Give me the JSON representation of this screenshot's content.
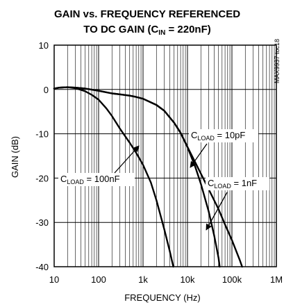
{
  "chart_data": {
    "type": "line",
    "title_line1": "GAIN vs. FREQUENCY REFERENCED",
    "title_line2": "TO DC GAIN (C",
    "title_sub": "IN",
    "title_suffix": " = 220nF)",
    "xlabel": "FREQUENCY (Hz)",
    "ylabel": "GAIN (dB)",
    "watermark": "MAX9937 toc18",
    "x_scale": "log",
    "xlim": [
      10,
      1000000
    ],
    "ylim": [
      -40,
      10
    ],
    "x_ticks": [
      {
        "value": 10,
        "label": "10"
      },
      {
        "value": 100,
        "label": "100"
      },
      {
        "value": 1000,
        "label": "1k"
      },
      {
        "value": 10000,
        "label": "10k"
      },
      {
        "value": 100000,
        "label": "100k"
      },
      {
        "value": 1000000,
        "label": "1M"
      }
    ],
    "y_ticks": [
      {
        "value": 10,
        "label": "10"
      },
      {
        "value": 0,
        "label": "0"
      },
      {
        "value": -10,
        "label": "-10"
      },
      {
        "value": -20,
        "label": "-20"
      },
      {
        "value": -30,
        "label": "-30"
      },
      {
        "value": -40,
        "label": "-40"
      }
    ],
    "grid": true,
    "series": [
      {
        "name": "CLOAD = 100nF",
        "x": [
          10,
          13,
          20,
          30,
          50,
          70,
          100,
          150,
          200,
          300,
          500,
          700,
          1000,
          1500,
          2000,
          3000,
          4000,
          4800
        ],
        "y": [
          0.2,
          0.4,
          0.5,
          0.3,
          -0.4,
          -1.2,
          -2.3,
          -4.3,
          -6.0,
          -8.8,
          -12.0,
          -14.3,
          -17.0,
          -21.0,
          -25.0,
          -31.5,
          -36.5,
          -40
        ]
      },
      {
        "name": "CLOAD = 1nF",
        "x": [
          10,
          13,
          20,
          30,
          50,
          100,
          200,
          300,
          500,
          700,
          1000,
          2000,
          3000,
          5000,
          7000,
          10000,
          15000,
          20000,
          30000,
          40000,
          50000,
          53000
        ],
        "y": [
          0.2,
          0.4,
          0.5,
          0.4,
          0.2,
          -0.3,
          -0.9,
          -1.1,
          -1.4,
          -1.7,
          -2.1,
          -3.5,
          -4.8,
          -7.5,
          -9.8,
          -13.0,
          -17.5,
          -21.3,
          -27.5,
          -33.0,
          -38.0,
          -40
        ]
      },
      {
        "name": "CLOAD = 10pF",
        "x": [
          10,
          13,
          20,
          30,
          50,
          100,
          200,
          300,
          500,
          700,
          1000,
          2000,
          3000,
          5000,
          7000,
          10000,
          15000,
          20000,
          30000,
          50000,
          70000,
          100000,
          150000,
          170000
        ],
        "y": [
          0.2,
          0.4,
          0.5,
          0.4,
          0.2,
          -0.3,
          -0.9,
          -1.1,
          -1.4,
          -1.7,
          -2.1,
          -3.5,
          -4.8,
          -7.5,
          -9.8,
          -13.0,
          -16.5,
          -19.0,
          -22.5,
          -27.0,
          -30.5,
          -34.0,
          -38.5,
          -40
        ]
      }
    ],
    "annotations": [
      {
        "main": "C",
        "sub": "LOAD",
        "rest": " = 10pF"
      },
      {
        "main": "C",
        "sub": "LOAD",
        "rest": " = 100nF"
      },
      {
        "main": "C",
        "sub": "LOAD",
        "rest": " = 1nF"
      }
    ]
  }
}
